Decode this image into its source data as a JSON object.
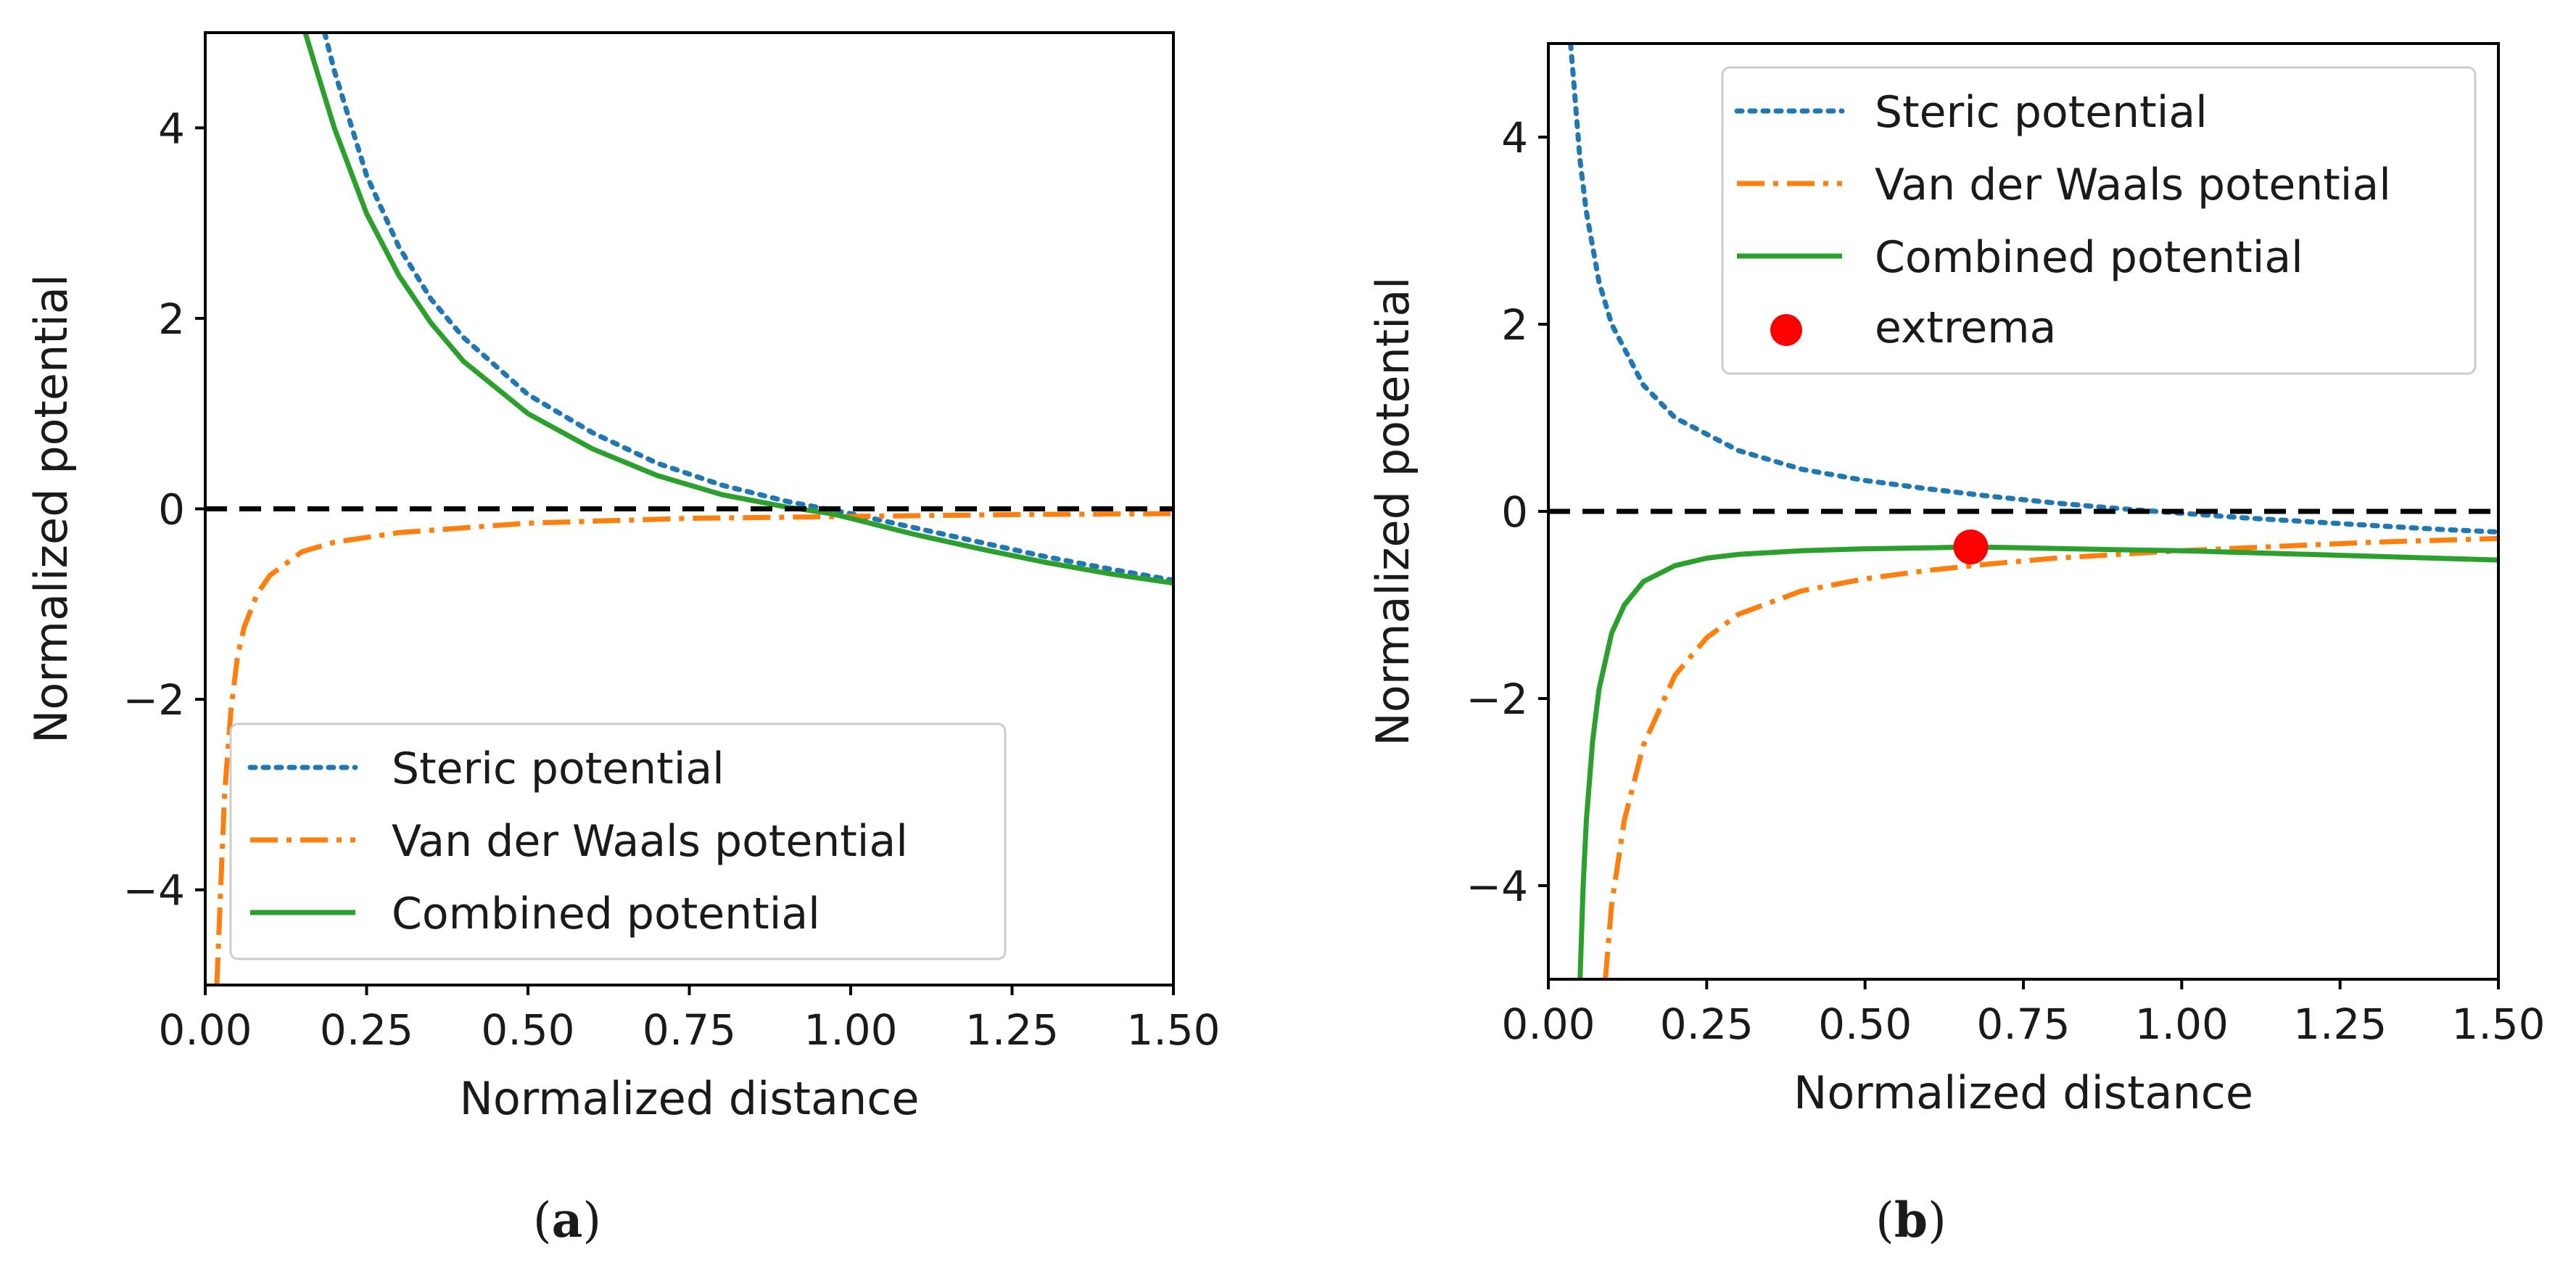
{
  "figure": {
    "captions": [
      {
        "open": "(",
        "letter": "a",
        "close": ")"
      },
      {
        "open": "(",
        "letter": "b",
        "close": ")"
      }
    ]
  },
  "chart_data": [
    {
      "type": "line",
      "panel": "a",
      "xlabel": "Normalized distance",
      "ylabel": "Normalized potential",
      "xlim": [
        0,
        1.5
      ],
      "ylim": [
        -5,
        5
      ],
      "xticks": [
        0,
        0.25,
        0.5,
        0.75,
        1.0,
        1.25,
        1.5
      ],
      "xtick_labels": [
        "0.00",
        "0.25",
        "0.50",
        "0.75",
        "1.00",
        "1.25",
        "1.50"
      ],
      "yticks": [
        4,
        2,
        0,
        -2,
        -4
      ],
      "ytick_labels": [
        "4",
        "2",
        "0",
        "−2",
        "−4"
      ],
      "grid": false,
      "zero_line": {
        "y": 0,
        "style": "dashed",
        "color": "#000000"
      },
      "legend": {
        "placement": "lower-left"
      },
      "series": [
        {
          "name": "Steric potential",
          "style": "dotted",
          "color": "#1f77b4",
          "x": [
            0.185,
            0.2,
            0.25,
            0.3,
            0.35,
            0.4,
            0.5,
            0.6,
            0.7,
            0.8,
            0.9,
            1.0,
            1.1,
            1.2,
            1.3,
            1.4,
            1.5
          ],
          "y": [
            5.0,
            4.6,
            3.5,
            2.75,
            2.2,
            1.8,
            1.2,
            0.8,
            0.48,
            0.25,
            0.08,
            -0.05,
            -0.2,
            -0.35,
            -0.5,
            -0.63,
            -0.75
          ]
        },
        {
          "name": "Van der Waals potential",
          "style": "dashdot",
          "color": "#ff7f0e",
          "x": [
            0.018,
            0.025,
            0.03,
            0.04,
            0.05,
            0.06,
            0.08,
            0.1,
            0.15,
            0.2,
            0.3,
            0.5,
            0.75,
            1.0,
            1.25,
            1.5
          ],
          "y": [
            -5.0,
            -3.8,
            -3.0,
            -2.1,
            -1.55,
            -1.25,
            -0.9,
            -0.7,
            -0.45,
            -0.35,
            -0.25,
            -0.15,
            -0.1,
            -0.08,
            -0.06,
            -0.05
          ]
        },
        {
          "name": "Combined potential",
          "style": "solid",
          "color": "#2ca02c",
          "x": [
            0.155,
            0.175,
            0.2,
            0.25,
            0.3,
            0.35,
            0.4,
            0.5,
            0.6,
            0.7,
            0.8,
            0.9,
            0.97,
            1.0,
            1.1,
            1.2,
            1.3,
            1.4,
            1.5
          ],
          "y": [
            5.0,
            4.55,
            4.0,
            3.1,
            2.45,
            1.95,
            1.55,
            1.0,
            0.63,
            0.35,
            0.15,
            0.02,
            -0.05,
            -0.1,
            -0.27,
            -0.42,
            -0.56,
            -0.68,
            -0.78
          ]
        }
      ]
    },
    {
      "type": "line",
      "panel": "b",
      "xlabel": "Normalized distance",
      "ylabel": "Normalized potential",
      "xlim": [
        0,
        1.5
      ],
      "ylim": [
        -5,
        5
      ],
      "xticks": [
        0,
        0.25,
        0.5,
        0.75,
        1.0,
        1.25,
        1.5
      ],
      "xtick_labels": [
        "0.00",
        "0.25",
        "0.50",
        "0.75",
        "1.00",
        "1.25",
        "1.50"
      ],
      "yticks": [
        4,
        2,
        0,
        -2,
        -4
      ],
      "ytick_labels": [
        "4",
        "2",
        "0",
        "−2",
        "−4"
      ],
      "grid": false,
      "zero_line": {
        "y": 0,
        "style": "dashed",
        "color": "#000000"
      },
      "legend": {
        "placement": "top-right"
      },
      "series": [
        {
          "name": "Steric potential",
          "style": "dotted",
          "color": "#1f77b4",
          "x": [
            0.035,
            0.04,
            0.05,
            0.06,
            0.08,
            0.1,
            0.15,
            0.2,
            0.3,
            0.4,
            0.5,
            0.6,
            0.7,
            0.8,
            0.9,
            1.0,
            1.1,
            1.2,
            1.3,
            1.4,
            1.5
          ],
          "y": [
            5.0,
            4.6,
            3.75,
            3.2,
            2.45,
            2.0,
            1.35,
            1.0,
            0.65,
            0.45,
            0.33,
            0.24,
            0.16,
            0.09,
            0.03,
            -0.02,
            -0.07,
            -0.11,
            -0.15,
            -0.19,
            -0.22
          ]
        },
        {
          "name": "Van der Waals potential",
          "style": "dashdot",
          "color": "#ff7f0e",
          "x": [
            0.09,
            0.1,
            0.12,
            0.15,
            0.2,
            0.25,
            0.3,
            0.4,
            0.5,
            0.6,
            0.7,
            0.8,
            0.9,
            1.0,
            1.1,
            1.2,
            1.3,
            1.4,
            1.5
          ],
          "y": [
            -5.0,
            -4.2,
            -3.3,
            -2.5,
            -1.75,
            -1.35,
            -1.1,
            -0.85,
            -0.72,
            -0.63,
            -0.56,
            -0.5,
            -0.46,
            -0.42,
            -0.39,
            -0.36,
            -0.33,
            -0.31,
            -0.29
          ]
        },
        {
          "name": "Combined potential",
          "style": "solid",
          "color": "#2ca02c",
          "x": [
            0.05,
            0.055,
            0.06,
            0.07,
            0.08,
            0.1,
            0.12,
            0.15,
            0.2,
            0.25,
            0.3,
            0.4,
            0.5,
            0.6,
            0.667,
            0.75,
            0.9,
            1.0,
            1.1,
            1.2,
            1.3,
            1.4,
            1.5
          ],
          "y": [
            -5.0,
            -4.0,
            -3.3,
            -2.45,
            -1.9,
            -1.3,
            -1.0,
            -0.75,
            -0.58,
            -0.5,
            -0.46,
            -0.42,
            -0.4,
            -0.39,
            -0.38,
            -0.39,
            -0.41,
            -0.42,
            -0.44,
            -0.46,
            -0.48,
            -0.5,
            -0.52
          ]
        }
      ],
      "markers": [
        {
          "name": "extrema",
          "color": "#ff0000",
          "x": 0.667,
          "y": -0.38
        }
      ]
    }
  ]
}
